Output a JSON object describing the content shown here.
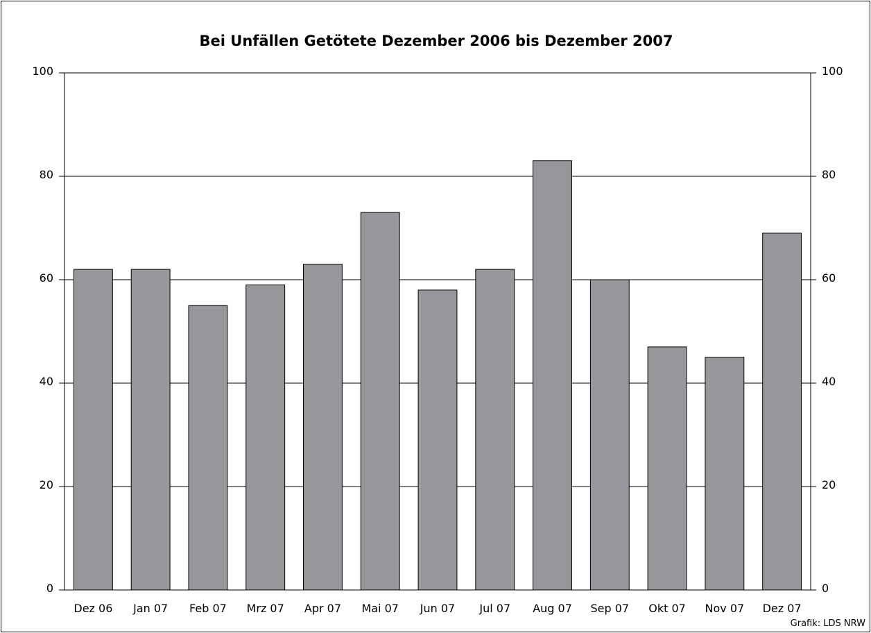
{
  "chart_data": {
    "type": "bar",
    "title": "Bei Unfällen Getötete Dezember 2006 bis Dezember 2007",
    "categories": [
      "Dez 06",
      "Jan 07",
      "Feb 07",
      "Mrz 07",
      "Apr 07",
      "Mai 07",
      "Jun 07",
      "Jul 07",
      "Aug 07",
      "Sep 07",
      "Okt 07",
      "Nov 07",
      "Dez 07"
    ],
    "values": [
      62,
      62,
      55,
      59,
      63,
      73,
      58,
      62,
      83,
      60,
      47,
      45,
      69
    ],
    "ylim": [
      0,
      100
    ],
    "yticks": [
      0,
      20,
      40,
      60,
      80,
      100
    ],
    "grid": true,
    "legend": "none",
    "colors": {
      "bar": "#96979b",
      "edge": "#000000",
      "grid": "#000000"
    },
    "source": "Grafik: LDS NRW"
  }
}
